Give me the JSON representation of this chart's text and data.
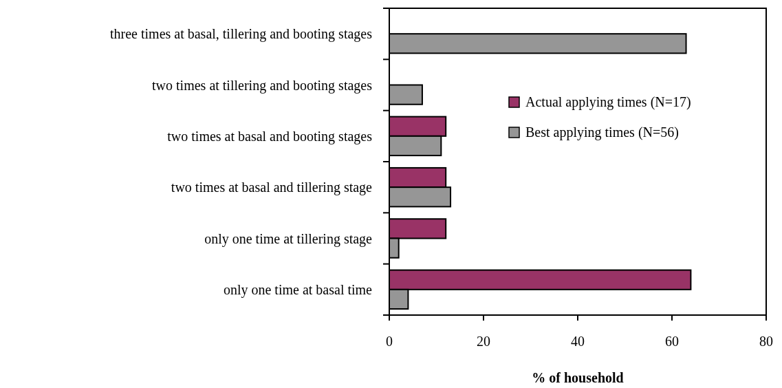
{
  "chart_data": {
    "type": "bar",
    "orientation": "horizontal",
    "xlabel": "% of household",
    "categories": [
      "three times at basal, tillering and booting stages",
      "two times at tillering and booting stages",
      "two times at basal and booting stages",
      "two times at basal and tillering stage",
      "only one time at tillering stage",
      "only one time at basal time"
    ],
    "series": [
      {
        "name": "Actual applying times (N=17)",
        "color": "#993366",
        "values": [
          null,
          null,
          12,
          12,
          12,
          64
        ]
      },
      {
        "name": "Best applying times (N=56)",
        "color": "#969696",
        "values": [
          63,
          7,
          11,
          13,
          2,
          4
        ]
      }
    ],
    "xlim": [
      0,
      80
    ],
    "xticks": [
      0,
      20,
      40,
      60,
      80
    ],
    "grid": false,
    "legend": "right"
  }
}
